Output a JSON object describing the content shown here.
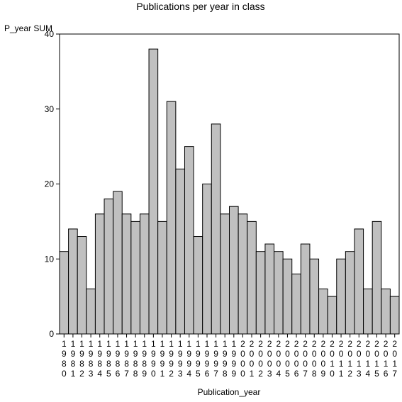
{
  "chart_data": {
    "type": "bar",
    "title": "Publications per year in class",
    "xlabel": "Publication_year",
    "ylabel": "P_year SUM",
    "ylim": [
      0,
      40
    ],
    "yticks": [
      0,
      10,
      20,
      30,
      40
    ],
    "grid": false,
    "categories": [
      "1980",
      "1981",
      "1982",
      "1983",
      "1984",
      "1985",
      "1986",
      "1987",
      "1988",
      "1989",
      "1990",
      "1991",
      "1992",
      "1993",
      "1994",
      "1995",
      "1996",
      "1997",
      "1998",
      "1999",
      "2000",
      "2001",
      "2002",
      "2003",
      "2004",
      "2005",
      "2006",
      "2007",
      "2008",
      "2009",
      "2010",
      "2011",
      "2012",
      "2013",
      "2014",
      "2015",
      "2016",
      "2017"
    ],
    "values": [
      11,
      14,
      13,
      6,
      16,
      18,
      19,
      16,
      15,
      16,
      38,
      15,
      31,
      22,
      25,
      13,
      20,
      28,
      16,
      17,
      16,
      15,
      11,
      12,
      11,
      10,
      8,
      12,
      10,
      6,
      5,
      10,
      11,
      14,
      6,
      15,
      6,
      5
    ],
    "colors": {
      "bar_fill": "#c0c0c0",
      "bar_stroke": "#000000"
    }
  }
}
